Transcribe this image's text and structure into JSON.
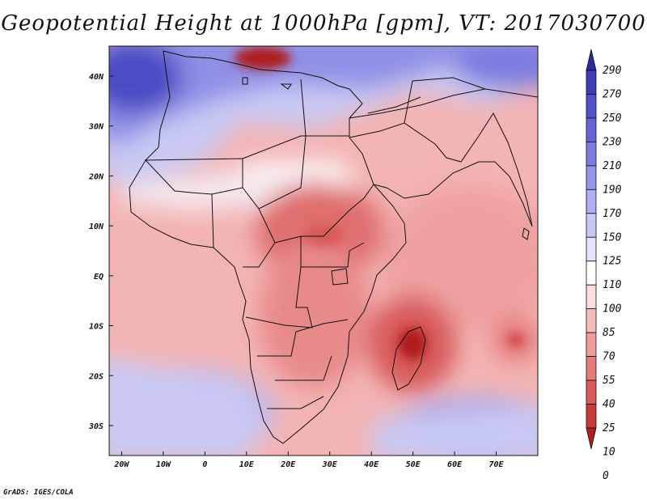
{
  "title": "Geopotential Height at 1000hPa [gpm], VT: 2017030700",
  "credit": "GrADS: IGES/COLA",
  "map": {
    "lon_range": [
      -23,
      80
    ],
    "lat_range": [
      -36,
      46
    ],
    "lon_ticks": [
      {
        "v": -20,
        "label": "20W"
      },
      {
        "v": -10,
        "label": "10W"
      },
      {
        "v": 0,
        "label": "0"
      },
      {
        "v": 10,
        "label": "10E"
      },
      {
        "v": 20,
        "label": "20E"
      },
      {
        "v": 30,
        "label": "30E"
      },
      {
        "v": 40,
        "label": "40E"
      },
      {
        "v": 50,
        "label": "50E"
      },
      {
        "v": 60,
        "label": "60E"
      },
      {
        "v": 70,
        "label": "70E"
      }
    ],
    "lat_ticks": [
      {
        "v": 40,
        "label": "40N"
      },
      {
        "v": 30,
        "label": "30N"
      },
      {
        "v": 20,
        "label": "20N"
      },
      {
        "v": 10,
        "label": "10N"
      },
      {
        "v": 0,
        "label": "EQ"
      },
      {
        "v": -10,
        "label": "10S"
      },
      {
        "v": -20,
        "label": "20S"
      },
      {
        "v": -30,
        "label": "30S"
      }
    ]
  },
  "colorbar": {
    "labels": [
      "290",
      "270",
      "250",
      "230",
      "210",
      "190",
      "170",
      "150",
      "125",
      "110",
      "100",
      "85",
      "70",
      "55",
      "40",
      "25",
      "10",
      "0"
    ],
    "colors": [
      "#2b2b9a",
      "#3d3db5",
      "#5050c8",
      "#6565d6",
      "#7b7be0",
      "#9494e8",
      "#aeaef0",
      "#c8c8f5",
      "#e2e2fa",
      "#ffffff",
      "#fbdcdc",
      "#f5bcbc",
      "#ee9c9c",
      "#e57c7c",
      "#d85a5a",
      "#c83a3a",
      "#b01e1e"
    ]
  }
}
